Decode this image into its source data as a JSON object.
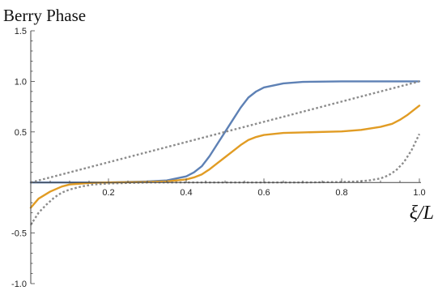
{
  "chart_data": {
    "type": "line",
    "title": "Berry Phase",
    "xlabel": "ξ/L",
    "ylabel": "",
    "xlim": [
      0,
      1.0
    ],
    "ylim": [
      -1.0,
      1.5
    ],
    "x_ticks": [
      0.2,
      0.4,
      0.6,
      0.8,
      1.0
    ],
    "x_tick_labels": [
      "0.2",
      "0.4",
      "0.6",
      "0.8",
      "1.0"
    ],
    "y_ticks": [
      -1.0,
      -0.5,
      0.5,
      1.0,
      1.5
    ],
    "y_tick_labels": [
      "-1.0",
      "-0.5",
      "0.5",
      "1.0",
      "1.5"
    ],
    "grid": false,
    "series": [
      {
        "color": "#5e81b5",
        "style": "solid",
        "x": [
          0,
          0.1,
          0.2,
          0.3,
          0.35,
          0.4,
          0.42,
          0.44,
          0.46,
          0.48,
          0.5,
          0.52,
          0.54,
          0.56,
          0.58,
          0.6,
          0.65,
          0.7,
          0.8,
          0.9,
          1.0
        ],
        "y": [
          0.0,
          0.0,
          0.0,
          0.01,
          0.02,
          0.06,
          0.1,
          0.16,
          0.26,
          0.38,
          0.5,
          0.62,
          0.74,
          0.84,
          0.9,
          0.94,
          0.98,
          0.995,
          1.0,
          1.0,
          1.0
        ]
      },
      {
        "color": "#e19c24",
        "style": "solid",
        "x": [
          0,
          0.02,
          0.05,
          0.08,
          0.1,
          0.15,
          0.2,
          0.3,
          0.35,
          0.4,
          0.42,
          0.44,
          0.46,
          0.48,
          0.5,
          0.52,
          0.54,
          0.56,
          0.58,
          0.6,
          0.65,
          0.7,
          0.8,
          0.85,
          0.9,
          0.93,
          0.95,
          0.97,
          0.99,
          1.0
        ],
        "y": [
          -0.25,
          -0.16,
          -0.09,
          -0.04,
          -0.02,
          -0.005,
          0.0,
          0.005,
          0.01,
          0.03,
          0.05,
          0.08,
          0.13,
          0.19,
          0.25,
          0.31,
          0.37,
          0.42,
          0.45,
          0.47,
          0.49,
          0.495,
          0.505,
          0.52,
          0.55,
          0.58,
          0.62,
          0.67,
          0.73,
          0.76
        ]
      },
      {
        "color": "#8c8c8c",
        "style": "dotted",
        "x": [
          0,
          1.0
        ],
        "y": [
          0.0,
          1.0
        ]
      },
      {
        "color": "#8c8c8c",
        "style": "dotted",
        "x": [
          0,
          0.02,
          0.04,
          0.06,
          0.08,
          0.1,
          0.13,
          0.16,
          0.2,
          0.3,
          0.5,
          0.7,
          0.8,
          0.84,
          0.87,
          0.9,
          0.92,
          0.94,
          0.96,
          0.98,
          1.0
        ],
        "y": [
          -0.42,
          -0.3,
          -0.22,
          -0.15,
          -0.1,
          -0.07,
          -0.04,
          -0.02,
          -0.01,
          0.0,
          0.0,
          0.0,
          0.005,
          0.01,
          0.02,
          0.04,
          0.07,
          0.12,
          0.2,
          0.32,
          0.48
        ]
      }
    ]
  }
}
